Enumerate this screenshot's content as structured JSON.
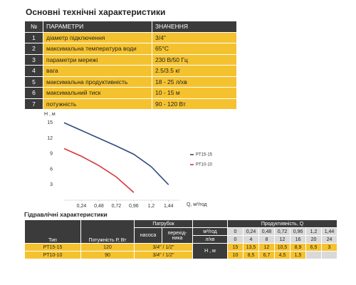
{
  "header": {
    "title": "Основні технічні характеристики"
  },
  "specs": {
    "columns": [
      "№",
      "ПАРАМЕТРИ",
      "ЗНАЧЕННЯ"
    ],
    "rows": [
      [
        "1",
        "діаметр підключення",
        "3/4\""
      ],
      [
        "2",
        "максимальна температура води",
        "65°C"
      ],
      [
        "3",
        "параметри мережі",
        "230 В/50 Гц"
      ],
      [
        "4",
        "вага",
        "2.5/3.5 кг"
      ],
      [
        "5",
        "максимальна продуктивність",
        "18 - 25 л/хв"
      ],
      [
        "6",
        "максимальний тиск",
        "10 - 15 м"
      ],
      [
        "7",
        "потужність",
        "90 - 120 Вт"
      ]
    ]
  },
  "chart_data": {
    "type": "line",
    "y_label": "Н , м",
    "x_label": "Q, м³/год",
    "x": [
      0,
      0.24,
      0.48,
      0.72,
      0.96,
      1.2,
      1.44
    ],
    "series": [
      {
        "name": "PT15-15",
        "color": "#2f4b7c",
        "values": [
          15,
          13.5,
          12,
          10.5,
          8.9,
          6.5,
          3
        ]
      },
      {
        "name": "PT10-10",
        "color": "#d9363e",
        "values": [
          10,
          8.5,
          6.7,
          4.5,
          1.5,
          null,
          null
        ]
      }
    ],
    "xlim": [
      0,
      1.56
    ],
    "ylim": [
      0,
      16
    ],
    "xticks": [
      {
        "value": 0.24,
        "label": "0,24"
      },
      {
        "value": 0.48,
        "label": "0,48"
      },
      {
        "value": 0.72,
        "label": "0,72"
      },
      {
        "value": 0.96,
        "label": "0,96"
      },
      {
        "value": 1.2,
        "label": "1,2"
      },
      {
        "value": 1.44,
        "label": "1,44"
      }
    ],
    "yticks": [
      3,
      6,
      9,
      12,
      15
    ],
    "grid": false,
    "legend": "right"
  },
  "hydraulics": {
    "title": "Гідравлічні характеристики",
    "type_header": "Тип",
    "power_header": "Потужність Р, Вт",
    "pipe_header": "Патрубок",
    "pump_header": "насоса",
    "adapter_header": "перехід-ника",
    "flow_header": "Продуктивність, Q",
    "flow_unit": "м³/год",
    "lpm_unit": "л/хв",
    "head_unit": "Н , м",
    "flow": [
      "0",
      "0,24",
      "0,48",
      "0,72",
      "0,96",
      "1,2",
      "1,44"
    ],
    "lpm": [
      "0",
      "4",
      "8",
      "12",
      "16",
      "20",
      "24"
    ],
    "rows": [
      {
        "type": "PT15-15",
        "power": "120",
        "pipe": "3/4\" / 1/2\"",
        "head": [
          "15",
          "13,5",
          "12",
          "10,5",
          "8,9",
          "6,5",
          "3"
        ]
      },
      {
        "type": "PT10-10",
        "power": "90",
        "pipe": "3/4\" / 1/2\"",
        "head": [
          "10",
          "8,5",
          "6,7",
          "4,5",
          "1,5"
        ]
      }
    ]
  }
}
